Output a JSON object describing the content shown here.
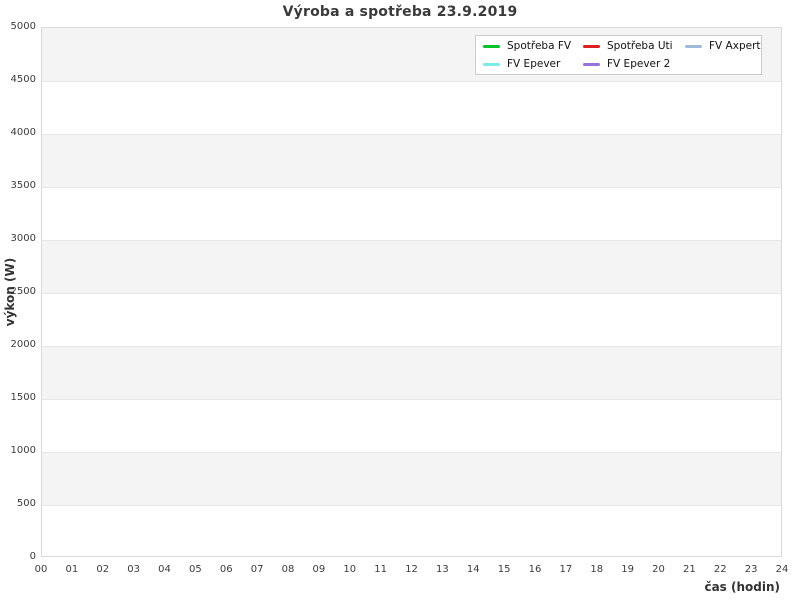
{
  "chart_data": {
    "type": "line",
    "title": "Výroba a spotřeba 23.9.2019",
    "xlabel": "čas (hodin)",
    "ylabel": "výkon (W)",
    "xlim": [
      0,
      24
    ],
    "ylim": [
      0,
      5000
    ],
    "x_tick_labels": [
      "00",
      "01",
      "02",
      "03",
      "04",
      "05",
      "06",
      "07",
      "08",
      "09",
      "10",
      "11",
      "12",
      "13",
      "14",
      "15",
      "16",
      "17",
      "18",
      "19",
      "20",
      "21",
      "22",
      "23",
      "24"
    ],
    "y_tick_labels": [
      "0",
      "500",
      "1000",
      "1500",
      "2000",
      "2500",
      "3000",
      "3500",
      "4000",
      "4500",
      "5000"
    ],
    "grid": "horizontal stripes every 500 W, no vertical gridlines",
    "legend_position": "upper right, 3 columns",
    "series": [
      {
        "name": "Spotřeba FV",
        "color": "#00c22a",
        "values": []
      },
      {
        "name": "Spotřeba Uti",
        "color": "#dd1e1e",
        "values": []
      },
      {
        "name": "FV Axpert",
        "color": "#a0b9d7",
        "values": []
      },
      {
        "name": "FV Epever",
        "color": "#7debe6",
        "values": []
      },
      {
        "name": "FV Epever 2",
        "color": "#9673d7",
        "values": []
      }
    ],
    "note": "plot area is empty — no data lines are drawn"
  },
  "legend": {
    "entries": [
      {
        "label": "Spotřeba FV",
        "color": "#00c22a"
      },
      {
        "label": "Spotřeba Uti",
        "color": "#dd1e1e"
      },
      {
        "label": "FV Axpert",
        "color": "#a0b9d7"
      },
      {
        "label": "FV Epever",
        "color": "#7debe6"
      },
      {
        "label": "FV Epever 2",
        "color": "#9673d7"
      }
    ]
  },
  "colors": {
    "stripe_band": "#f4f4f4",
    "gridline": "#e7e7e7",
    "plot_border": "#d9d9d9",
    "title_text": "#3a3a3a",
    "tick_text": "#3c3c3c",
    "background": "#ffffff"
  }
}
